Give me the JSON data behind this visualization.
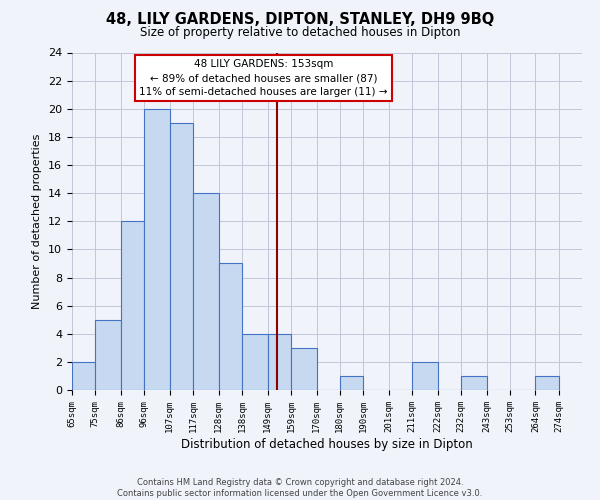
{
  "title": "48, LILY GARDENS, DIPTON, STANLEY, DH9 9BQ",
  "subtitle": "Size of property relative to detached houses in Dipton",
  "xlabel": "Distribution of detached houses by size in Dipton",
  "ylabel": "Number of detached properties",
  "bin_edges": [
    65,
    75,
    86,
    96,
    107,
    117,
    128,
    138,
    149,
    159,
    170,
    180,
    190,
    201,
    211,
    222,
    232,
    243,
    253,
    264,
    274
  ],
  "bin_labels": [
    "65sqm",
    "75sqm",
    "86sqm",
    "96sqm",
    "107sqm",
    "117sqm",
    "128sqm",
    "138sqm",
    "149sqm",
    "159sqm",
    "170sqm",
    "180sqm",
    "190sqm",
    "201sqm",
    "211sqm",
    "222sqm",
    "232sqm",
    "243sqm",
    "253sqm",
    "264sqm",
    "274sqm"
  ],
  "counts": [
    2,
    5,
    12,
    20,
    19,
    14,
    9,
    4,
    4,
    3,
    0,
    1,
    0,
    0,
    2,
    0,
    1,
    0,
    0,
    1
  ],
  "bar_color": "#c6d9f0",
  "bar_edge_color": "#4472c4",
  "property_size": 153,
  "property_label": "48 LILY GARDENS: 153sqm",
  "pct_smaller": 89,
  "n_smaller": 87,
  "pct_larger": 11,
  "n_larger": 11,
  "vline_color": "#8b0000",
  "annotation_box_edge_color": "#cc0000",
  "ylim": [
    0,
    24
  ],
  "yticks": [
    0,
    2,
    4,
    6,
    8,
    10,
    12,
    14,
    16,
    18,
    20,
    22,
    24
  ],
  "footer_line1": "Contains HM Land Registry data © Crown copyright and database right 2024.",
  "footer_line2": "Contains public sector information licensed under the Open Government Licence v3.0.",
  "background_color": "#f0f4fa",
  "grid_color": "#c0c8d8"
}
